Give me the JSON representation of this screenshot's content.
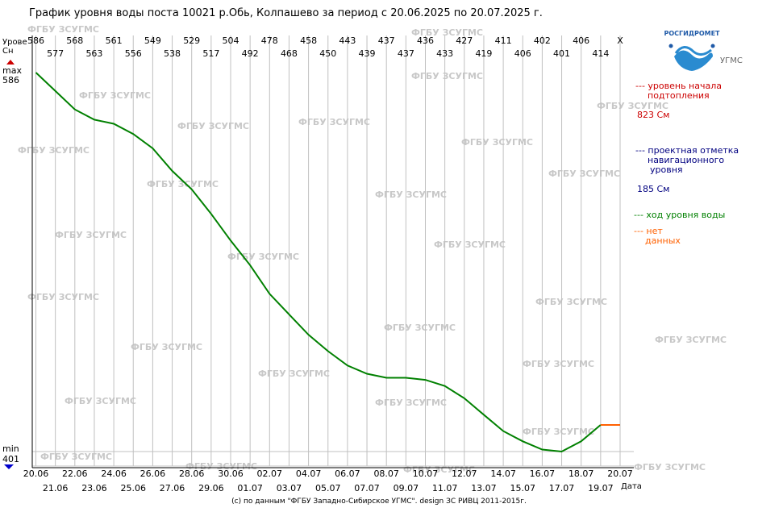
{
  "chart_data": {
    "type": "line",
    "title": "График уровня воды поста 10021 р.Обь, Колпашево за период с 20.06.2025 по 20.07.2025 г.",
    "ylabel_line1": "Урове",
    "ylabel_line2": "Сн",
    "xlabel": "Дата",
    "max_label": "max",
    "max_value": "586",
    "min_label": "min",
    "min_value": "401",
    "x": [
      "20.06",
      "21.06",
      "22.06",
      "23.06",
      "24.06",
      "25.06",
      "26.06",
      "27.06",
      "28.06",
      "29.06",
      "30.06",
      "01.07",
      "02.07",
      "03.07",
      "04.07",
      "05.07",
      "06.07",
      "07.07",
      "08.07",
      "09.07",
      "10.07",
      "11.07",
      "12.07",
      "13.07",
      "14.07",
      "15.07",
      "16.07",
      "17.07",
      "18.07",
      "19.07",
      "20.07"
    ],
    "series": [
      {
        "name": "ход уровня воды",
        "color": "#008000",
        "values": [
          586,
          577,
          568,
          563,
          561,
          556,
          549,
          538,
          529,
          517,
          504,
          492,
          478,
          468,
          458,
          450,
          443,
          439,
          437,
          437,
          436,
          433,
          427,
          419,
          411,
          406,
          402,
          401,
          406,
          414,
          null
        ]
      }
    ],
    "nodata_series": {
      "color": "#ff6000",
      "x_from": "19.07",
      "x_to": "20.07",
      "value": 414
    },
    "top_values": [
      "586",
      "577",
      "568",
      "563",
      "561",
      "556",
      "549",
      "538",
      "529",
      "517",
      "504",
      "492",
      "478",
      "468",
      "458",
      "450",
      "443",
      "439",
      "437",
      "437",
      "436",
      "433",
      "427",
      "419",
      "411",
      "406",
      "402",
      "401",
      "406",
      "414",
      "X"
    ],
    "ylim": [
      401,
      586
    ],
    "grid": true,
    "watermark": "ФГБУ ЗСУГМС",
    "logo_text": "РОСГИДРОМЕТ",
    "logo_suffix": "УГМС",
    "legend": [
      {
        "line1": "--- уровень начала",
        "line2": "подтопления",
        "value": "823 См",
        "color": "#cc0000"
      },
      {
        "line1": "--- проектная отметка",
        "line2": "навигационного",
        "line3": "уровня",
        "value": "185 См",
        "color": "#000080"
      },
      {
        "line1": "--- ход уровня воды",
        "color": "#008000"
      },
      {
        "line1": "--- нет",
        "line2": "данных",
        "color": "#ff6000"
      }
    ],
    "footer": "(с) по данным \"ФГБУ Западно-Сибирское УГМС\". design ЗС РИВЦ 2011-2015г."
  }
}
